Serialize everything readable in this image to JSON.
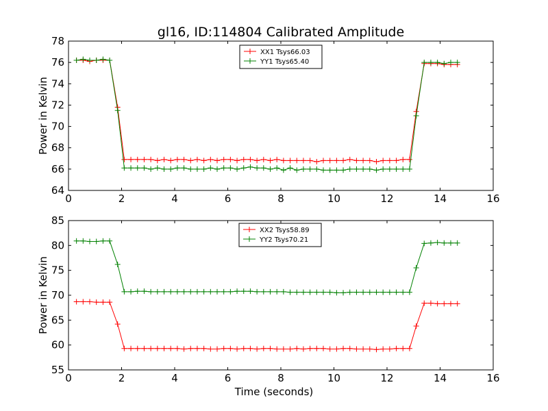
{
  "title": "gl16, ID:114804 Calibrated Amplitude",
  "chart_data": [
    {
      "type": "line",
      "title": "gl16, ID:114804 Calibrated Amplitude",
      "xlabel": "",
      "ylabel": "Power in Kelvin",
      "xlim": [
        0,
        16
      ],
      "ylim": [
        64,
        78
      ],
      "xticks": [
        0,
        2,
        4,
        6,
        8,
        10,
        12,
        14,
        16
      ],
      "yticks": [
        64,
        66,
        68,
        70,
        72,
        74,
        76,
        78
      ],
      "grid": false,
      "legend_position": "top-center",
      "x": [
        0.3,
        0.55,
        0.8,
        1.05,
        1.3,
        1.55,
        1.85,
        2.1,
        2.35,
        2.6,
        2.85,
        3.1,
        3.35,
        3.6,
        3.85,
        4.1,
        4.35,
        4.6,
        4.85,
        5.1,
        5.35,
        5.6,
        5.85,
        6.1,
        6.35,
        6.6,
        6.85,
        7.1,
        7.35,
        7.6,
        7.85,
        8.1,
        8.35,
        8.6,
        8.85,
        9.1,
        9.35,
        9.6,
        9.85,
        10.1,
        10.35,
        10.6,
        10.85,
        11.1,
        11.35,
        11.6,
        11.85,
        12.1,
        12.35,
        12.6,
        12.85,
        13.1,
        13.4,
        13.65,
        13.9,
        14.15,
        14.4,
        14.65
      ],
      "series": [
        {
          "name": "XX1 Tsys66.03",
          "color": "#ff0000",
          "values": [
            76.2,
            76.2,
            76.1,
            76.2,
            76.2,
            76.2,
            71.8,
            66.9,
            66.9,
            66.9,
            66.9,
            66.9,
            66.8,
            66.9,
            66.8,
            66.9,
            66.9,
            66.8,
            66.9,
            66.8,
            66.9,
            66.8,
            66.9,
            66.9,
            66.8,
            66.9,
            66.9,
            66.8,
            66.9,
            66.8,
            66.9,
            66.8,
            66.8,
            66.8,
            66.8,
            66.8,
            66.7,
            66.8,
            66.8,
            66.8,
            66.8,
            66.9,
            66.8,
            66.8,
            66.8,
            66.7,
            66.8,
            66.8,
            66.8,
            66.9,
            66.9,
            71.4,
            75.9,
            75.9,
            75.9,
            75.8,
            75.8,
            75.8
          ]
        },
        {
          "name": "YY1 Tsys65.40",
          "color": "#008000",
          "values": [
            76.2,
            76.3,
            76.2,
            76.2,
            76.3,
            76.2,
            71.5,
            66.1,
            66.1,
            66.1,
            66.1,
            66.0,
            66.1,
            66.0,
            66.0,
            66.1,
            66.1,
            66.0,
            66.0,
            66.0,
            66.1,
            66.0,
            66.1,
            66.1,
            66.0,
            66.1,
            66.2,
            66.1,
            66.1,
            66.0,
            66.1,
            65.9,
            66.1,
            65.9,
            66.0,
            66.0,
            66.0,
            65.9,
            65.9,
            65.9,
            65.9,
            66.0,
            66.0,
            66.0,
            66.0,
            65.9,
            66.0,
            66.0,
            66.0,
            66.0,
            66.0,
            71.0,
            76.0,
            76.0,
            76.0,
            75.9,
            76.0,
            76.0
          ]
        }
      ]
    },
    {
      "type": "line",
      "title": "",
      "xlabel": "Time (seconds)",
      "ylabel": "Power in Kelvin",
      "xlim": [
        0,
        16
      ],
      "ylim": [
        55,
        85
      ],
      "xticks": [
        0,
        2,
        4,
        6,
        8,
        10,
        12,
        14,
        16
      ],
      "yticks": [
        55,
        60,
        65,
        70,
        75,
        80,
        85
      ],
      "grid": false,
      "legend_position": "top-center",
      "x": [
        0.3,
        0.55,
        0.8,
        1.05,
        1.3,
        1.55,
        1.85,
        2.1,
        2.35,
        2.6,
        2.85,
        3.1,
        3.35,
        3.6,
        3.85,
        4.1,
        4.35,
        4.6,
        4.85,
        5.1,
        5.35,
        5.6,
        5.85,
        6.1,
        6.35,
        6.6,
        6.85,
        7.1,
        7.35,
        7.6,
        7.85,
        8.1,
        8.35,
        8.6,
        8.85,
        9.1,
        9.35,
        9.6,
        9.85,
        10.1,
        10.35,
        10.6,
        10.85,
        11.1,
        11.35,
        11.6,
        11.85,
        12.1,
        12.35,
        12.6,
        12.85,
        13.1,
        13.4,
        13.65,
        13.9,
        14.15,
        14.4,
        14.65
      ],
      "series": [
        {
          "name": "XX2 Tsys58.89",
          "color": "#ff0000",
          "values": [
            68.7,
            68.7,
            68.7,
            68.6,
            68.6,
            68.6,
            64.2,
            59.3,
            59.3,
            59.3,
            59.3,
            59.3,
            59.3,
            59.3,
            59.3,
            59.3,
            59.2,
            59.3,
            59.3,
            59.3,
            59.2,
            59.2,
            59.3,
            59.3,
            59.2,
            59.3,
            59.3,
            59.2,
            59.3,
            59.3,
            59.2,
            59.2,
            59.2,
            59.3,
            59.2,
            59.3,
            59.3,
            59.3,
            59.2,
            59.2,
            59.3,
            59.3,
            59.2,
            59.2,
            59.2,
            59.1,
            59.2,
            59.2,
            59.3,
            59.3,
            59.3,
            63.8,
            68.4,
            68.4,
            68.3,
            68.3,
            68.3,
            68.3
          ]
        },
        {
          "name": "YY2 Tsys70.21",
          "color": "#008000",
          "values": [
            80.9,
            80.9,
            80.8,
            80.8,
            80.9,
            80.9,
            76.2,
            70.7,
            70.7,
            70.8,
            70.8,
            70.7,
            70.7,
            70.7,
            70.7,
            70.7,
            70.7,
            70.7,
            70.7,
            70.7,
            70.7,
            70.7,
            70.7,
            70.7,
            70.8,
            70.8,
            70.8,
            70.7,
            70.7,
            70.7,
            70.7,
            70.7,
            70.6,
            70.6,
            70.6,
            70.6,
            70.6,
            70.6,
            70.6,
            70.5,
            70.5,
            70.6,
            70.6,
            70.6,
            70.6,
            70.6,
            70.6,
            70.6,
            70.6,
            70.6,
            70.6,
            75.5,
            80.4,
            80.5,
            80.6,
            80.5,
            80.5,
            80.5
          ]
        }
      ]
    }
  ]
}
